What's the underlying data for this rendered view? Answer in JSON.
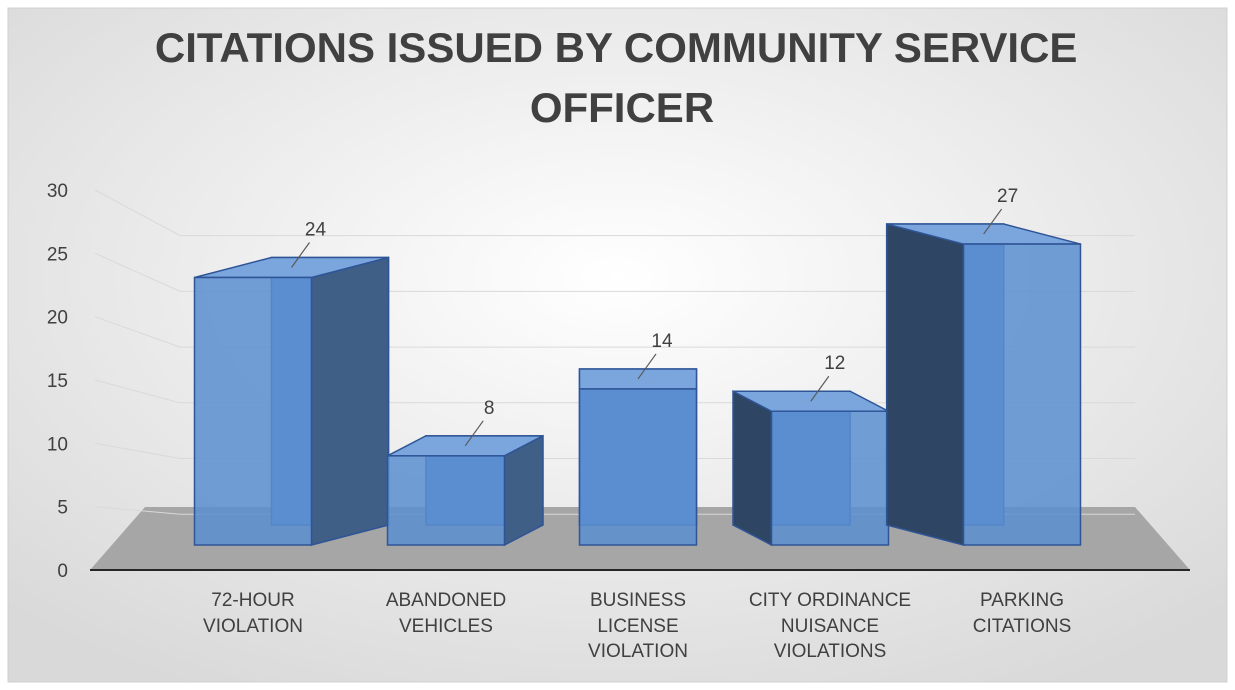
{
  "chart_data": {
    "type": "bar3d",
    "title": "CITATIONS ISSUED BY COMMUNITY SERVICE OFFICER",
    "categories": [
      "72-HOUR VIOLATION",
      "ABANDONED VEHICLES",
      "BUSINESS LICENSE VIOLATION",
      "CITY ORDINANCE NUISANCE VIOLATIONS",
      "PARKING CITATIONS"
    ],
    "values": [
      24,
      8,
      14,
      12,
      27
    ],
    "color": "#5b8ed0",
    "ylim": [
      0,
      30
    ],
    "yticks": [
      0,
      5,
      10,
      15,
      20,
      25,
      30
    ],
    "grid": true
  }
}
